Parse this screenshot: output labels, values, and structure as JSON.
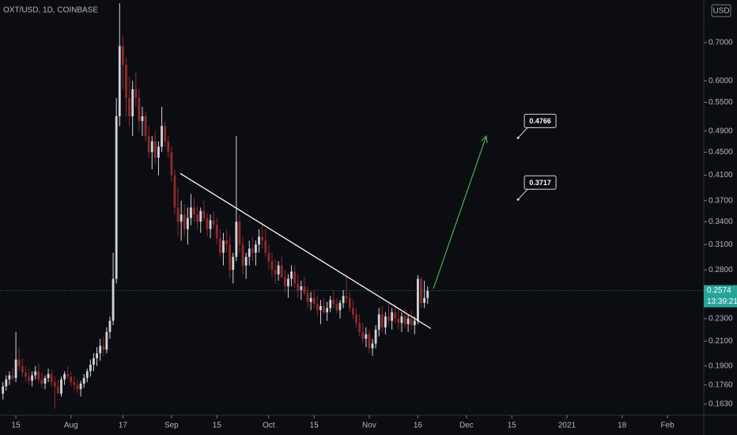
{
  "chart_data": {
    "type": "candlestick",
    "title": "OXT/USD, 1D, COINBASE",
    "currency": "USD",
    "log_scale": true,
    "grid": false,
    "up_color": "#d1d4dc",
    "down_color": "#8e2b2b",
    "xlim": [
      -4.9,
      212.2
    ],
    "ylim": [
      0.1558,
      0.831
    ],
    "xticks": [
      {
        "value": 0,
        "label": "15"
      },
      {
        "value": 17,
        "label": "Aug"
      },
      {
        "value": 33,
        "label": "17"
      },
      {
        "value": 48,
        "label": "Sep"
      },
      {
        "value": 62,
        "label": "15"
      },
      {
        "value": 78,
        "label": "Oct"
      },
      {
        "value": 92,
        "label": "15"
      },
      {
        "value": 109,
        "label": "Nov"
      },
      {
        "value": 124,
        "label": "16"
      },
      {
        "value": 139,
        "label": "Dec"
      },
      {
        "value": 153,
        "label": "15"
      },
      {
        "value": 170,
        "label": "2021"
      },
      {
        "value": 187,
        "label": "18"
      },
      {
        "value": 201,
        "label": "Feb"
      }
    ],
    "yticks": [
      {
        "value": 0.7,
        "label": "0.7000"
      },
      {
        "value": 0.6,
        "label": "0.6000"
      },
      {
        "value": 0.55,
        "label": "0.5500"
      },
      {
        "value": 0.49,
        "label": "0.4900"
      },
      {
        "value": 0.45,
        "label": "0.4500"
      },
      {
        "value": 0.41,
        "label": "0.4100"
      },
      {
        "value": 0.37,
        "label": "0.3700"
      },
      {
        "value": 0.34,
        "label": "0.3400"
      },
      {
        "value": 0.31,
        "label": "0.3100"
      },
      {
        "value": 0.28,
        "label": "0.2800"
      },
      {
        "value": 0.23,
        "label": "0.2300"
      },
      {
        "value": 0.21,
        "label": "0.2100"
      },
      {
        "value": 0.19,
        "label": "0.1900"
      },
      {
        "value": 0.176,
        "label": "0.1760"
      },
      {
        "value": 0.163,
        "label": "0.1630"
      }
    ],
    "x": [
      -4,
      -3,
      -2,
      -1,
      0,
      1,
      2,
      3,
      4,
      5,
      6,
      7,
      8,
      9,
      10,
      11,
      12,
      13,
      14,
      15,
      16,
      17,
      18,
      19,
      20,
      21,
      22,
      23,
      24,
      25,
      26,
      27,
      28,
      29,
      30,
      31,
      32,
      33,
      34,
      35,
      36,
      37,
      38,
      39,
      40,
      41,
      42,
      43,
      44,
      45,
      46,
      47,
      48,
      49,
      50,
      51,
      52,
      53,
      54,
      55,
      56,
      57,
      58,
      59,
      60,
      61,
      62,
      63,
      64,
      65,
      66,
      67,
      68,
      69,
      70,
      71,
      72,
      73,
      74,
      75,
      76,
      77,
      78,
      79,
      80,
      81,
      82,
      83,
      84,
      85,
      86,
      87,
      88,
      89,
      90,
      91,
      92,
      93,
      94,
      95,
      96,
      97,
      98,
      99,
      100,
      101,
      102,
      103,
      104,
      105,
      106,
      107,
      108,
      109,
      110,
      111,
      112,
      113,
      114,
      115,
      116,
      117,
      118,
      119,
      120,
      121,
      122,
      123,
      124,
      125,
      126,
      127
    ],
    "ohlc": [
      [
        0.17,
        0.178,
        0.166,
        0.175
      ],
      [
        0.175,
        0.183,
        0.172,
        0.18
      ],
      [
        0.18,
        0.186,
        0.176,
        0.183
      ],
      [
        0.183,
        0.189,
        0.179,
        0.181
      ],
      [
        0.181,
        0.218,
        0.178,
        0.195
      ],
      [
        0.195,
        0.205,
        0.186,
        0.19
      ],
      [
        0.19,
        0.196,
        0.182,
        0.185
      ],
      [
        0.185,
        0.19,
        0.178,
        0.182
      ],
      [
        0.182,
        0.188,
        0.176,
        0.179
      ],
      [
        0.179,
        0.186,
        0.175,
        0.183
      ],
      [
        0.183,
        0.19,
        0.18,
        0.186
      ],
      [
        0.186,
        0.192,
        0.178,
        0.18
      ],
      [
        0.18,
        0.185,
        0.174,
        0.177
      ],
      [
        0.177,
        0.183,
        0.173,
        0.181
      ],
      [
        0.181,
        0.188,
        0.178,
        0.184
      ],
      [
        0.184,
        0.187,
        0.175,
        0.178
      ],
      [
        0.178,
        0.182,
        0.16,
        0.175
      ],
      [
        0.175,
        0.18,
        0.171,
        0.17
      ],
      [
        0.17,
        0.182,
        0.168,
        0.18
      ],
      [
        0.18,
        0.186,
        0.176,
        0.184
      ],
      [
        0.184,
        0.19,
        0.18,
        0.182
      ],
      [
        0.182,
        0.186,
        0.175,
        0.178
      ],
      [
        0.178,
        0.183,
        0.172,
        0.176
      ],
      [
        0.176,
        0.18,
        0.17,
        0.173
      ],
      [
        0.173,
        0.179,
        0.168,
        0.177
      ],
      [
        0.177,
        0.184,
        0.174,
        0.181
      ],
      [
        0.181,
        0.188,
        0.178,
        0.186
      ],
      [
        0.186,
        0.195,
        0.182,
        0.191
      ],
      [
        0.191,
        0.2,
        0.186,
        0.196
      ],
      [
        0.196,
        0.205,
        0.19,
        0.2
      ],
      [
        0.2,
        0.212,
        0.194,
        0.206
      ],
      [
        0.206,
        0.214,
        0.198,
        0.203
      ],
      [
        0.203,
        0.222,
        0.2,
        0.218
      ],
      [
        0.218,
        0.232,
        0.212,
        0.228
      ],
      [
        0.228,
        0.3,
        0.224,
        0.27
      ],
      [
        0.27,
        0.56,
        0.265,
        0.52
      ],
      [
        0.52,
        0.82,
        0.5,
        0.69
      ],
      [
        0.69,
        0.72,
        0.58,
        0.64
      ],
      [
        0.64,
        0.66,
        0.52,
        0.56
      ],
      [
        0.56,
        0.61,
        0.5,
        0.52
      ],
      [
        0.52,
        0.6,
        0.48,
        0.58
      ],
      [
        0.58,
        0.62,
        0.54,
        0.56
      ],
      [
        0.56,
        0.58,
        0.49,
        0.51
      ],
      [
        0.51,
        0.54,
        0.48,
        0.52
      ],
      [
        0.52,
        0.53,
        0.47,
        0.48
      ],
      [
        0.48,
        0.5,
        0.44,
        0.45
      ],
      [
        0.45,
        0.48,
        0.42,
        0.47
      ],
      [
        0.47,
        0.49,
        0.43,
        0.44
      ],
      [
        0.44,
        0.47,
        0.41,
        0.46
      ],
      [
        0.46,
        0.54,
        0.45,
        0.5
      ],
      [
        0.5,
        0.51,
        0.46,
        0.47
      ],
      [
        0.47,
        0.48,
        0.44,
        0.45
      ],
      [
        0.45,
        0.46,
        0.4,
        0.41
      ],
      [
        0.41,
        0.42,
        0.35,
        0.36
      ],
      [
        0.36,
        0.39,
        0.32,
        0.34
      ],
      [
        0.34,
        0.37,
        0.315,
        0.35
      ],
      [
        0.35,
        0.365,
        0.32,
        0.33
      ],
      [
        0.33,
        0.36,
        0.31,
        0.345
      ],
      [
        0.345,
        0.38,
        0.335,
        0.36
      ],
      [
        0.36,
        0.375,
        0.34,
        0.35
      ],
      [
        0.35,
        0.362,
        0.33,
        0.34
      ],
      [
        0.34,
        0.36,
        0.325,
        0.355
      ],
      [
        0.355,
        0.37,
        0.34,
        0.345
      ],
      [
        0.345,
        0.352,
        0.32,
        0.33
      ],
      [
        0.33,
        0.35,
        0.318,
        0.342
      ],
      [
        0.342,
        0.355,
        0.33,
        0.336
      ],
      [
        0.336,
        0.345,
        0.31,
        0.318
      ],
      [
        0.318,
        0.33,
        0.295,
        0.3
      ],
      [
        0.3,
        0.325,
        0.285,
        0.315
      ],
      [
        0.315,
        0.33,
        0.3,
        0.31
      ],
      [
        0.31,
        0.322,
        0.27,
        0.28
      ],
      [
        0.28,
        0.3,
        0.265,
        0.295
      ],
      [
        0.295,
        0.48,
        0.29,
        0.34
      ],
      [
        0.34,
        0.35,
        0.3,
        0.31
      ],
      [
        0.31,
        0.32,
        0.275,
        0.285
      ],
      [
        0.285,
        0.3,
        0.27,
        0.295
      ],
      [
        0.295,
        0.315,
        0.285,
        0.305
      ],
      [
        0.305,
        0.32,
        0.29,
        0.3
      ],
      [
        0.3,
        0.315,
        0.285,
        0.31
      ],
      [
        0.31,
        0.33,
        0.3,
        0.32
      ],
      [
        0.32,
        0.34,
        0.305,
        0.315
      ],
      [
        0.315,
        0.33,
        0.295,
        0.3
      ],
      [
        0.3,
        0.31,
        0.28,
        0.29
      ],
      [
        0.29,
        0.3,
        0.272,
        0.28
      ],
      [
        0.28,
        0.292,
        0.265,
        0.275
      ],
      [
        0.275,
        0.29,
        0.268,
        0.285
      ],
      [
        0.285,
        0.295,
        0.27,
        0.272
      ],
      [
        0.272,
        0.28,
        0.255,
        0.262
      ],
      [
        0.262,
        0.275,
        0.25,
        0.27
      ],
      [
        0.27,
        0.285,
        0.262,
        0.278
      ],
      [
        0.278,
        0.285,
        0.26,
        0.265
      ],
      [
        0.265,
        0.275,
        0.25,
        0.258
      ],
      [
        0.258,
        0.268,
        0.248,
        0.262
      ],
      [
        0.262,
        0.272,
        0.252,
        0.255
      ],
      [
        0.255,
        0.262,
        0.24,
        0.246
      ],
      [
        0.246,
        0.256,
        0.238,
        0.25
      ],
      [
        0.25,
        0.258,
        0.24,
        0.244
      ],
      [
        0.244,
        0.252,
        0.232,
        0.238
      ],
      [
        0.238,
        0.248,
        0.225,
        0.242
      ],
      [
        0.242,
        0.25,
        0.234,
        0.236
      ],
      [
        0.236,
        0.246,
        0.228,
        0.24
      ],
      [
        0.24,
        0.252,
        0.236,
        0.248
      ],
      [
        0.248,
        0.258,
        0.24,
        0.244
      ],
      [
        0.244,
        0.25,
        0.235,
        0.238
      ],
      [
        0.238,
        0.248,
        0.23,
        0.245
      ],
      [
        0.245,
        0.258,
        0.24,
        0.252
      ],
      [
        0.252,
        0.275,
        0.245,
        0.25
      ],
      [
        0.25,
        0.256,
        0.236,
        0.24
      ],
      [
        0.24,
        0.248,
        0.23,
        0.234
      ],
      [
        0.234,
        0.24,
        0.222,
        0.226
      ],
      [
        0.226,
        0.234,
        0.214,
        0.218
      ],
      [
        0.218,
        0.226,
        0.208,
        0.212
      ],
      [
        0.212,
        0.222,
        0.205,
        0.216
      ],
      [
        0.216,
        0.22,
        0.2,
        0.204
      ],
      [
        0.204,
        0.212,
        0.198,
        0.208
      ],
      [
        0.208,
        0.224,
        0.204,
        0.22
      ],
      [
        0.22,
        0.24,
        0.214,
        0.234
      ],
      [
        0.234,
        0.242,
        0.218,
        0.222
      ],
      [
        0.222,
        0.236,
        0.216,
        0.232
      ],
      [
        0.232,
        0.244,
        0.224,
        0.228
      ],
      [
        0.228,
        0.24,
        0.22,
        0.236
      ],
      [
        0.236,
        0.244,
        0.226,
        0.23
      ],
      [
        0.23,
        0.238,
        0.22,
        0.226
      ],
      [
        0.226,
        0.236,
        0.218,
        0.232
      ],
      [
        0.232,
        0.24,
        0.222,
        0.225
      ],
      [
        0.225,
        0.234,
        0.218,
        0.23
      ],
      [
        0.23,
        0.238,
        0.22,
        0.224
      ],
      [
        0.224,
        0.232,
        0.216,
        0.228
      ],
      [
        0.228,
        0.274,
        0.225,
        0.27
      ],
      [
        0.27,
        0.272,
        0.24,
        0.245
      ],
      [
        0.245,
        0.268,
        0.24,
        0.25
      ],
      [
        0.25,
        0.262,
        0.244,
        0.2574
      ]
    ],
    "last_price": 0.2574,
    "countdown": "13:39:21",
    "trendline": {
      "color": "#ffffff",
      "x": [
        50.7,
        128
      ],
      "y": [
        0.413,
        0.221
      ]
    },
    "arrow": {
      "color": "#4caf50",
      "x": [
        128.8,
        145.1
      ],
      "y": [
        0.2597,
        0.48
      ]
    },
    "annotations": [
      {
        "x": 154.9,
        "y": 0.4766
      },
      {
        "x": 154.9,
        "y": 0.3717
      }
    ]
  }
}
